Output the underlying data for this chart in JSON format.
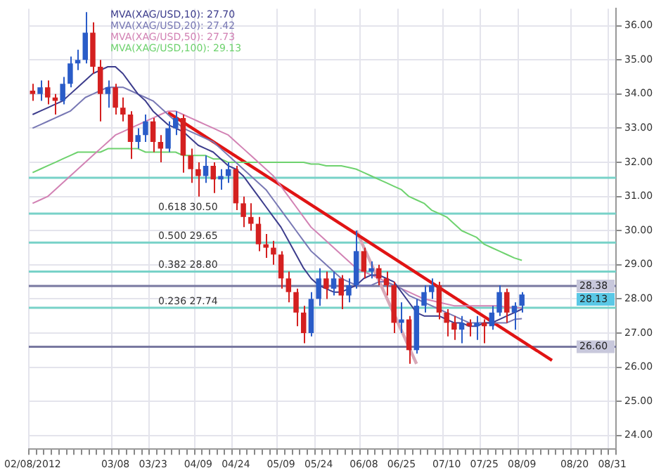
{
  "chart_data": {
    "type": "candlestick",
    "categories": [
      "02/08/2012",
      null,
      null,
      null,
      null,
      null,
      null,
      null,
      null,
      null,
      null,
      "03/08",
      null,
      null,
      null,
      null,
      "03/23",
      null,
      null,
      null,
      null,
      null,
      "04/09",
      null,
      null,
      null,
      null,
      "04/24",
      null,
      null,
      null,
      null,
      null,
      "05/09",
      null,
      null,
      null,
      null,
      "05/24",
      null,
      null,
      null,
      null,
      null,
      "06/08",
      null,
      null,
      null,
      null,
      "06/25",
      null,
      null,
      null,
      null,
      null,
      "07/10",
      null,
      null,
      null,
      null,
      "07/25",
      null,
      null,
      null,
      null,
      "08/09",
      null,
      null,
      null,
      null,
      null,
      null,
      "08/20",
      null,
      null,
      null,
      null,
      "08/31"
    ],
    "ohlc": [
      [
        34.1,
        34.3,
        33.8,
        34.0
      ],
      [
        34.0,
        34.4,
        33.8,
        34.2
      ],
      [
        34.2,
        34.4,
        33.7,
        33.9
      ],
      [
        33.9,
        34.0,
        33.4,
        33.8
      ],
      [
        33.8,
        34.5,
        33.7,
        34.3
      ],
      [
        34.3,
        35.1,
        34.2,
        34.9
      ],
      [
        34.9,
        35.3,
        34.7,
        35.0
      ],
      [
        35.0,
        36.4,
        34.9,
        35.8
      ],
      [
        35.8,
        36.1,
        34.6,
        34.8
      ],
      [
        34.8,
        35.0,
        33.2,
        34.0
      ],
      [
        34.0,
        34.4,
        33.6,
        34.2
      ],
      [
        34.2,
        34.3,
        33.4,
        33.6
      ],
      [
        33.6,
        33.9,
        33.2,
        33.4
      ],
      [
        33.4,
        33.5,
        32.1,
        32.6
      ],
      [
        32.6,
        33.0,
        32.4,
        32.8
      ],
      [
        32.8,
        33.4,
        32.6,
        33.2
      ],
      [
        33.2,
        33.3,
        32.3,
        32.6
      ],
      [
        32.6,
        32.8,
        32.0,
        32.4
      ],
      [
        32.4,
        33.2,
        32.3,
        33.0
      ],
      [
        33.0,
        33.5,
        32.8,
        33.3
      ],
      [
        33.3,
        33.4,
        31.7,
        32.2
      ],
      [
        32.2,
        32.4,
        31.4,
        31.8
      ],
      [
        31.8,
        32.0,
        31.0,
        31.6
      ],
      [
        31.6,
        32.2,
        31.4,
        31.9
      ],
      [
        31.9,
        32.0,
        31.1,
        31.5
      ],
      [
        31.5,
        31.8,
        31.2,
        31.6
      ],
      [
        31.6,
        32.0,
        31.4,
        31.8
      ],
      [
        31.8,
        31.9,
        30.6,
        30.8
      ],
      [
        30.8,
        31.0,
        30.1,
        30.4
      ],
      [
        30.4,
        30.8,
        30.0,
        30.2
      ],
      [
        30.2,
        30.4,
        29.4,
        29.6
      ],
      [
        29.6,
        29.9,
        29.2,
        29.5
      ],
      [
        29.5,
        29.7,
        29.0,
        29.3
      ],
      [
        29.3,
        29.4,
        28.3,
        28.6
      ],
      [
        28.6,
        28.8,
        27.9,
        28.2
      ],
      [
        28.2,
        28.3,
        27.2,
        27.6
      ],
      [
        27.6,
        27.8,
        26.7,
        27.0
      ],
      [
        27.0,
        28.2,
        26.9,
        28.0
      ],
      [
        28.0,
        28.9,
        27.8,
        28.6
      ],
      [
        28.6,
        28.8,
        28.0,
        28.3
      ],
      [
        28.3,
        28.8,
        28.1,
        28.6
      ],
      [
        28.6,
        28.7,
        27.7,
        28.1
      ],
      [
        28.1,
        28.6,
        27.9,
        28.4
      ],
      [
        28.4,
        30.0,
        28.3,
        29.4
      ],
      [
        29.4,
        29.5,
        28.6,
        28.8
      ],
      [
        28.8,
        29.1,
        28.6,
        28.9
      ],
      [
        28.9,
        29.0,
        28.4,
        28.6
      ],
      [
        28.6,
        28.8,
        28.1,
        28.4
      ],
      [
        28.4,
        28.5,
        27.0,
        27.3
      ],
      [
        27.3,
        27.9,
        27.0,
        27.4
      ],
      [
        27.4,
        27.5,
        26.1,
        26.5
      ],
      [
        26.5,
        28.0,
        26.4,
        27.8
      ],
      [
        27.8,
        28.4,
        27.6,
        28.2
      ],
      [
        28.2,
        28.6,
        28.0,
        28.4
      ],
      [
        28.4,
        28.5,
        27.4,
        27.6
      ],
      [
        27.6,
        27.7,
        26.9,
        27.3
      ],
      [
        27.3,
        27.5,
        26.8,
        27.1
      ],
      [
        27.1,
        27.5,
        26.7,
        27.3
      ],
      [
        27.3,
        27.4,
        26.9,
        27.2
      ],
      [
        27.2,
        27.5,
        26.8,
        27.3
      ],
      [
        27.3,
        27.4,
        26.7,
        27.2
      ],
      [
        27.2,
        27.8,
        27.1,
        27.6
      ],
      [
        27.6,
        28.4,
        27.5,
        28.2
      ],
      [
        28.2,
        28.3,
        27.3,
        27.6
      ],
      [
        27.6,
        27.9,
        27.1,
        27.8
      ],
      [
        27.8,
        28.2,
        27.6,
        28.13
      ],
      null,
      null,
      null,
      null,
      null,
      null,
      null,
      null,
      null,
      null,
      null,
      null
    ],
    "series": [
      {
        "type": "line",
        "name": "MVA(XAG/USD,10): 27.70",
        "color": "#3c3c8c",
        "values": [
          33.4,
          33.5,
          33.6,
          33.7,
          33.8,
          34.0,
          34.2,
          34.4,
          34.6,
          34.7,
          34.8,
          34.8,
          34.6,
          34.3,
          34.0,
          33.8,
          33.5,
          33.3,
          33.1,
          33.0,
          32.9,
          32.7,
          32.5,
          32.4,
          32.3,
          32.1,
          31.9,
          31.8,
          31.6,
          31.3,
          31.0,
          30.7,
          30.4,
          30.1,
          29.7,
          29.3,
          28.9,
          28.6,
          28.4,
          28.3,
          28.2,
          28.2,
          28.3,
          28.4,
          28.6,
          28.7,
          28.7,
          28.6,
          28.5,
          28.2,
          27.9,
          27.6,
          27.5,
          27.5,
          27.5,
          27.4,
          27.3,
          27.3,
          27.2,
          27.2,
          27.3,
          27.3,
          27.4,
          27.5,
          27.6,
          27.7,
          null,
          null,
          null,
          null,
          null,
          null,
          null,
          null,
          null,
          null,
          null,
          null
        ]
      },
      {
        "type": "line",
        "name": "MVA(XAG/USD,20): 27.42",
        "color": "#7878b4",
        "values": [
          33.0,
          33.1,
          33.2,
          33.3,
          33.4,
          33.5,
          33.7,
          33.9,
          34.0,
          34.1,
          34.2,
          34.2,
          34.2,
          34.1,
          34.0,
          33.9,
          33.8,
          33.6,
          33.4,
          33.2,
          33.0,
          32.9,
          32.8,
          32.7,
          32.6,
          32.4,
          32.2,
          32.0,
          31.8,
          31.6,
          31.4,
          31.2,
          30.9,
          30.6,
          30.3,
          30.0,
          29.7,
          29.4,
          29.2,
          29.0,
          28.8,
          28.6,
          28.5,
          28.4,
          28.4,
          28.4,
          28.5,
          28.5,
          28.4,
          28.3,
          28.1,
          28.0,
          27.9,
          27.8,
          27.7,
          27.6,
          27.5,
          27.4,
          27.3,
          27.3,
          27.3,
          27.3,
          27.3,
          27.3,
          27.4,
          27.42,
          null,
          null,
          null,
          null,
          null,
          null,
          null,
          null,
          null,
          null,
          null,
          null
        ]
      },
      {
        "type": "line",
        "name": "MVA(XAG/USD,50): 27.73",
        "color": "#d282b4",
        "values": [
          30.8,
          30.9,
          31.0,
          31.2,
          31.4,
          31.6,
          31.8,
          32.0,
          32.2,
          32.4,
          32.6,
          32.8,
          32.9,
          33.0,
          33.1,
          33.2,
          33.3,
          33.4,
          33.5,
          33.5,
          33.4,
          33.3,
          33.2,
          33.1,
          33.0,
          32.9,
          32.8,
          32.6,
          32.4,
          32.2,
          32.0,
          31.8,
          31.6,
          31.3,
          31.0,
          30.7,
          30.4,
          30.1,
          29.9,
          29.7,
          29.5,
          29.3,
          29.1,
          28.9,
          28.8,
          28.7,
          28.6,
          28.5,
          28.4,
          28.3,
          28.2,
          28.1,
          28.0,
          27.95,
          27.9,
          27.85,
          27.8,
          27.8,
          27.8,
          27.8,
          27.8,
          27.8,
          27.8,
          27.75,
          27.75,
          27.73,
          null,
          null,
          null,
          null,
          null,
          null,
          null,
          null,
          null,
          null,
          null,
          null
        ]
      },
      {
        "type": "line",
        "name": "MVA(XAG/USD,100): 29.13",
        "color": "#6ed26e",
        "values": [
          31.7,
          31.8,
          31.9,
          32.0,
          32.1,
          32.2,
          32.3,
          32.3,
          32.3,
          32.3,
          32.4,
          32.4,
          32.4,
          32.4,
          32.4,
          32.3,
          32.3,
          32.3,
          32.3,
          32.3,
          32.2,
          32.2,
          32.2,
          32.2,
          32.1,
          32.1,
          32.0,
          32.0,
          32.0,
          32.0,
          32.0,
          32.0,
          32.0,
          32.0,
          32.0,
          32.0,
          32.0,
          31.95,
          31.95,
          31.9,
          31.9,
          31.9,
          31.85,
          31.8,
          31.7,
          31.6,
          31.5,
          31.4,
          31.3,
          31.2,
          31.0,
          30.9,
          30.8,
          30.6,
          30.5,
          30.4,
          30.2,
          30.0,
          29.9,
          29.8,
          29.6,
          29.5,
          29.4,
          29.3,
          29.2,
          29.13,
          null,
          null,
          null,
          null,
          null,
          null,
          null,
          null,
          null,
          null,
          null,
          null
        ]
      },
      {
        "type": "line",
        "color": "#e01414",
        "values": [
          null,
          null,
          null,
          null,
          null,
          null,
          null,
          null,
          null,
          null,
          null,
          null,
          null,
          null,
          null,
          null,
          null,
          null,
          33.46,
          null,
          null,
          null,
          null,
          null,
          null,
          null,
          null,
          null,
          null,
          null,
          null,
          null,
          null,
          null,
          null,
          null,
          null,
          null,
          null,
          null,
          null,
          null,
          null,
          null,
          null,
          null,
          null,
          null,
          null,
          null,
          null,
          null,
          null,
          null,
          null,
          null,
          null,
          null,
          null,
          null,
          null,
          null,
          null,
          null,
          null,
          null,
          null,
          null,
          null,
          26.2,
          null,
          null,
          null,
          null,
          null,
          null,
          null,
          null
        ]
      },
      {
        "type": "line",
        "color": "#d8a8b8",
        "values": [
          null,
          null,
          null,
          null,
          null,
          null,
          null,
          null,
          null,
          null,
          null,
          null,
          null,
          null,
          null,
          null,
          null,
          null,
          null,
          null,
          null,
          null,
          null,
          null,
          null,
          null,
          null,
          null,
          null,
          null,
          null,
          null,
          null,
          null,
          null,
          null,
          null,
          null,
          null,
          null,
          null,
          null,
          null,
          30.0,
          null,
          null,
          null,
          null,
          null,
          null,
          null,
          26.1,
          null,
          null,
          null,
          null,
          null,
          null,
          null,
          null,
          null,
          null,
          null,
          null,
          null,
          null,
          null,
          null,
          null,
          null,
          null,
          null,
          null,
          null,
          null,
          null,
          null,
          null
        ]
      }
    ],
    "ylim": [
      23.6,
      36.5
    ],
    "yticks": [
      {
        "value": 24,
        "label": "24.00"
      },
      {
        "value": 25,
        "label": "25.00"
      },
      {
        "value": 26,
        "label": "26.00"
      },
      {
        "value": 27,
        "label": "27.00"
      },
      {
        "value": 28,
        "label": "28.00"
      },
      {
        "value": 29,
        "label": "29.00"
      },
      {
        "value": 30,
        "label": "30.00"
      },
      {
        "value": 31,
        "label": "31.00"
      },
      {
        "value": 32,
        "label": "32.00"
      },
      {
        "value": 33,
        "label": "33.00"
      },
      {
        "value": 34,
        "label": "34.00"
      },
      {
        "value": 35,
        "label": "35.00"
      },
      {
        "value": 36,
        "label": "36.00"
      }
    ],
    "ref_lines": [
      {
        "axis": "y",
        "value": 31.55,
        "color": "#78d2c8"
      },
      {
        "axis": "y",
        "value": 30.5,
        "label": "0.618 30.50",
        "color": "#78d2c8"
      },
      {
        "axis": "y",
        "value": 29.65,
        "label": "0.500 29.65",
        "color": "#78d2c8"
      },
      {
        "axis": "y",
        "value": 28.8,
        "label": "0.382 28.80",
        "color": "#78d2c8"
      },
      {
        "axis": "y",
        "value": 27.74,
        "label": "0.236 27.74",
        "color": "#78d2c8"
      },
      {
        "axis": "y",
        "value": 28.38,
        "label": "28.38",
        "color": "#7878a0"
      },
      {
        "axis": "y",
        "value": 26.6,
        "label": "26.60",
        "color": "#7878a0"
      }
    ],
    "annotations": [
      "28.13"
    ],
    "grid": true,
    "legend": "top"
  }
}
